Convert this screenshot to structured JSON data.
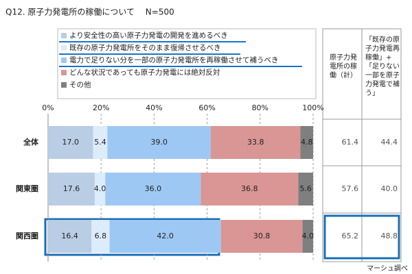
{
  "chart_data": {
    "type": "stacked-bar-horizontal",
    "title": "Q12. 原子力発電所の稼働について　 N=500",
    "categories": [
      "全体",
      "関東圏",
      "関西圏"
    ],
    "series": [
      {
        "name": "より安全性の高い原子力発電の開発を進めるべき",
        "color": "#b9cde5",
        "values": [
          17.0,
          17.6,
          16.4
        ],
        "value_labels": [
          "17.0",
          "17.6",
          "16.4"
        ]
      },
      {
        "name": "既存の原子力発電所をそのまま復帰させるべき",
        "color": "#dcecfb",
        "values": [
          5.4,
          4.0,
          6.8
        ],
        "value_labels": [
          "5.4",
          "4.0",
          "6.8"
        ]
      },
      {
        "name": "電力で足りない分を一部の原子力発電所を再稼働させて補うべき",
        "color": "#9dc8f3",
        "values": [
          39.0,
          36.0,
          42.0
        ],
        "value_labels": [
          "39.0",
          "36.0",
          "42.0"
        ]
      },
      {
        "name": "どんな状況であっても原子力発電には絶対反対",
        "color": "#d99694",
        "values": [
          33.8,
          36.8,
          30.8
        ],
        "value_labels": [
          "33.8",
          "36.8",
          "30.8"
        ]
      },
      {
        "name": "その他",
        "color": "#7f7f7f",
        "values": [
          4.8,
          5.6,
          4.0
        ],
        "value_labels": [
          "4.8",
          "5.6",
          "4.0"
        ]
      }
    ],
    "xlim": [
      0,
      100
    ],
    "xticks": [
      {
        "value": 0,
        "label": "0%"
      },
      {
        "value": 20,
        "label": "20%"
      },
      {
        "value": 40,
        "label": "40%"
      },
      {
        "value": 60,
        "label": "60%"
      },
      {
        "value": 80,
        "label": "80%"
      },
      {
        "value": 100,
        "label": "100%"
      }
    ],
    "grid": true,
    "table": {
      "headers": [
        "原子力発電所の稼働（計）",
        "「既存の原子力発電再稼働」+「足りない一部を原子力発電で補う」"
      ],
      "rows": [
        [
          "61.4",
          "44.4"
        ],
        [
          "57.6",
          "40.0"
        ],
        [
          "65.2",
          "48.8"
        ]
      ]
    },
    "source": "マーシュ調べ"
  }
}
